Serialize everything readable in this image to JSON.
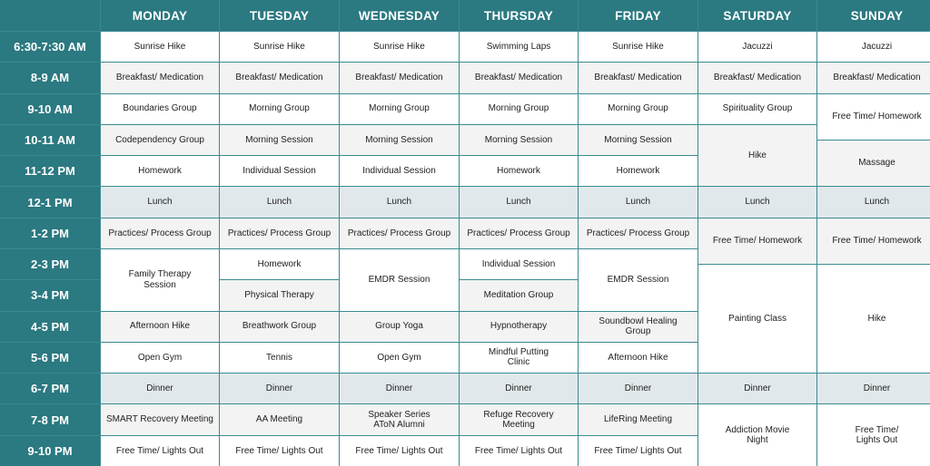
{
  "colors": {
    "header": "#2b7981",
    "border": "#3a8b92",
    "meal_row": "#e1e8eb",
    "alt_row": "#f3f3f3"
  },
  "days": [
    "MONDAY",
    "TUESDAY",
    "WEDNESDAY",
    "THURSDAY",
    "FRIDAY",
    "SATURDAY",
    "SUNDAY"
  ],
  "times": [
    "6:30-7:30 AM",
    "8-9 AM",
    "9-10 AM",
    "10-11 AM",
    "11-12 PM",
    "12-1 PM",
    "1-2 PM",
    "2-3 PM",
    "3-4 PM",
    "4-5 PM",
    "5-6 PM",
    "6-7 PM",
    "7-8 PM",
    "9-10 PM"
  ],
  "schedule": [
    [
      "Sunrise Hike",
      "Breakfast/ Medication",
      "Boundaries Group",
      "Codependency Group",
      "Homework",
      "Lunch",
      "Practices/ Process Group",
      "Family Therapy\nSession",
      "Afternoon Hike",
      "Open Gym",
      "Dinner",
      "SMART Recovery Meeting",
      "Free Time/ Lights Out"
    ],
    [
      "Sunrise Hike",
      "Breakfast/ Medication",
      "Morning Group",
      "Morning Session",
      "Individual Session",
      "Lunch",
      "Practices/ Process Group",
      "Homework",
      "Physical Therapy",
      "Breathwork Group",
      "Tennis",
      "Dinner",
      "AA Meeting",
      "Free Time/ Lights Out"
    ],
    [
      "Sunrise Hike",
      "Breakfast/ Medication",
      "Morning Group",
      "Morning Session",
      "Individual Session",
      "Lunch",
      "Practices/ Process Group",
      "EMDR Session",
      "Group Yoga",
      "Open Gym",
      "Dinner",
      "Speaker Series\nAToN Alumni",
      "Free Time/ Lights Out"
    ],
    [
      "Swimming Laps",
      "Breakfast/ Medication",
      "Morning Group",
      "Morning Session",
      "Homework",
      "Lunch",
      "Practices/ Process Group",
      "Individual Session",
      "Meditation Group",
      "Hypnotherapy",
      "Mindful Putting\nClinic",
      "Dinner",
      "Refuge Recovery\nMeeting",
      "Free Time/ Lights Out"
    ],
    [
      "Sunrise Hike",
      "Breakfast/ Medication",
      "Morning Group",
      "Morning Session",
      "Homework",
      "Lunch",
      "Practices/ Process Group",
      "EMDR Session",
      "Soundbowl Healing\nGroup",
      "Afternoon Hike",
      "Dinner",
      "LifeRing Meeting",
      "Free Time/ Lights Out"
    ],
    [
      "Jacuzzi",
      "Breakfast/ Medication",
      "Spirituality Group",
      "Hike",
      "Lunch",
      "Free Time/ Homework",
      "Painting Class",
      "Dinner",
      "Addiction Movie\nNight"
    ],
    [
      "Jacuzzi",
      "Breakfast/ Medication",
      "Free Time/ Homework",
      "Massage",
      "Lunch",
      "Free Time/ Homework",
      "Hike",
      "Dinner",
      "Free Time/\nLights Out"
    ]
  ]
}
